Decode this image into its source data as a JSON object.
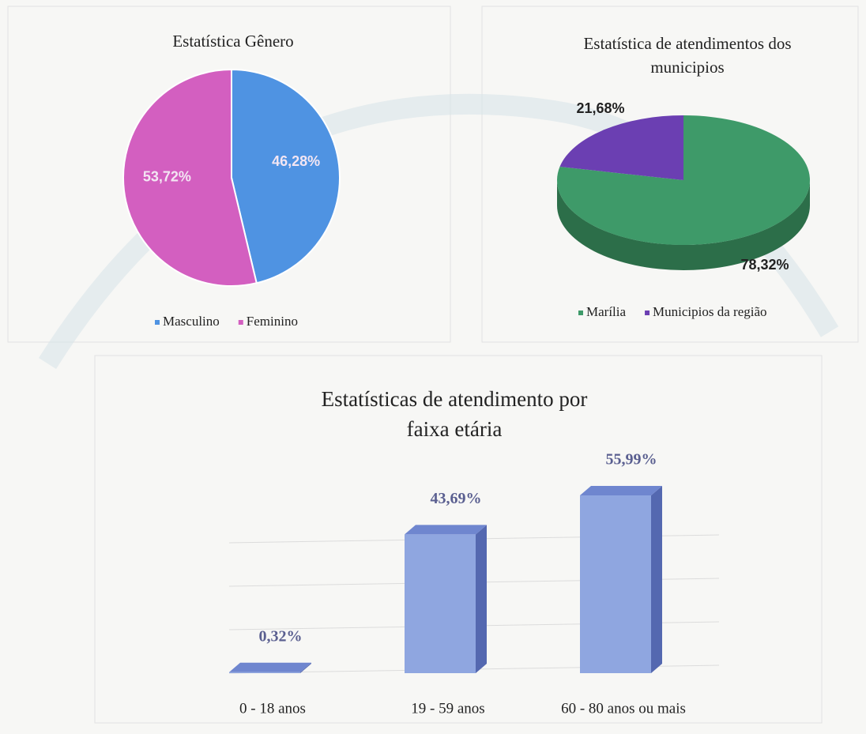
{
  "chart_data": [
    {
      "type": "pie",
      "title": "Estatística Gênero",
      "categories": [
        "Masculino",
        "Feminino"
      ],
      "values": [
        46.28,
        53.72
      ],
      "value_labels": [
        "46,28%",
        "53,72%"
      ],
      "colors": [
        "#4f93e2",
        "#d35fc0"
      ]
    },
    {
      "type": "pie3d",
      "title": "Estatística de atendimentos dos municipios",
      "categories": [
        "Marília",
        "Municipios da região"
      ],
      "values": [
        78.32,
        21.68
      ],
      "value_labels": [
        "78,32%",
        "21,68%"
      ],
      "colors": [
        "#3e9a69",
        "#6b3fb2"
      ]
    },
    {
      "type": "bar3d",
      "title": "Estatísticas de atendimento por faixa etária",
      "categories": [
        "0 - 18 anos",
        "19 - 59 anos",
        "60 - 80 anos ou mais"
      ],
      "values": [
        0.32,
        43.69,
        55.99
      ],
      "value_labels": [
        "0,32%",
        "43,69%",
        "55,99%"
      ],
      "color": "#8fa6e0"
    }
  ]
}
